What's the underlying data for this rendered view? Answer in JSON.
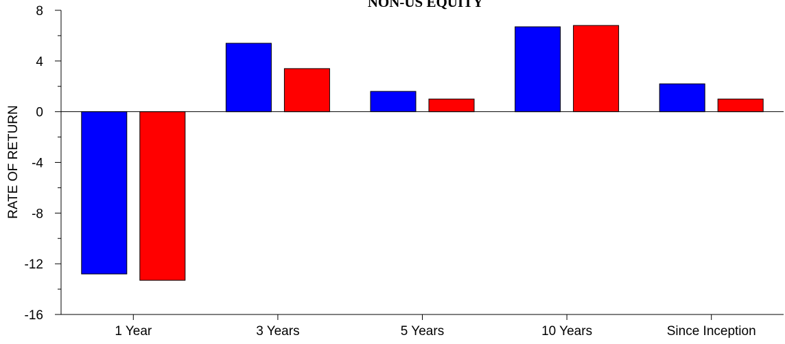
{
  "chart_data": {
    "type": "bar",
    "title": "NON-US EQUITY",
    "xlabel": "",
    "ylabel": "RATE OF RETURN",
    "ylim": [
      -16,
      8
    ],
    "y_ticks": [
      8,
      4,
      0,
      -4,
      -8,
      -12,
      -16
    ],
    "y_tick_labels": [
      "8",
      "4",
      "0",
      "-4",
      "-8",
      "-12",
      "-16"
    ],
    "categories": [
      "1 Year",
      "3 Years",
      "5 Years",
      "10 Years",
      "Since Inception"
    ],
    "grid": false,
    "legend": "none",
    "series": [
      {
        "color": "#0000ff",
        "values": [
          -12.8,
          5.4,
          1.6,
          6.7,
          2.2
        ]
      },
      {
        "color": "#ff0000",
        "values": [
          -13.3,
          3.4,
          1.0,
          6.8,
          1.0
        ]
      }
    ]
  }
}
